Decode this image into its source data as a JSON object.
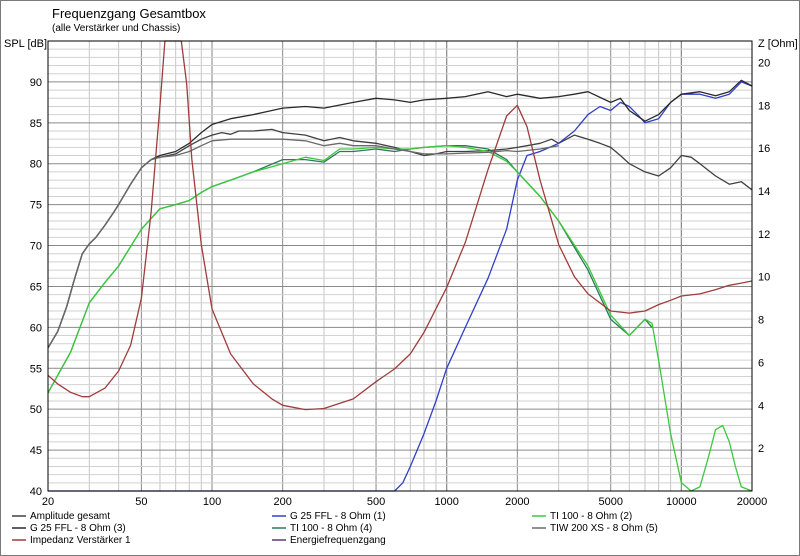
{
  "header": {
    "title": "Frequenzgang Gesamtbox",
    "subtitle": "(alle Verstärker und Chassis)",
    "y_left_label": "SPL [dB]",
    "y_right_label": "Z [Ohm]"
  },
  "chart_data": {
    "type": "line",
    "x_scale": "log",
    "xlim": [
      20,
      20000
    ],
    "ylim": [
      40,
      95
    ],
    "y2lim": [
      0,
      21
    ],
    "x_ticks": [
      20,
      50,
      100,
      200,
      500,
      1000,
      2000,
      5000,
      10000,
      20000
    ],
    "y_ticks": [
      40,
      45,
      50,
      55,
      60,
      65,
      70,
      75,
      80,
      85,
      90
    ],
    "y2_ticks": [
      2,
      4,
      6,
      8,
      10,
      12,
      14,
      16,
      18,
      20
    ],
    "grid": true,
    "legend_position": "bottom",
    "series": [
      {
        "name": "Amplitude gesamt",
        "axis": "left",
        "color": "#404040",
        "points": [
          [
            20,
            57.5
          ],
          [
            22,
            59.5
          ],
          [
            24,
            62.5
          ],
          [
            26,
            66
          ],
          [
            28,
            69
          ],
          [
            30,
            70.2
          ],
          [
            32,
            71
          ],
          [
            35,
            72.5
          ],
          [
            38,
            74
          ],
          [
            40,
            75
          ],
          [
            45,
            77.5
          ],
          [
            50,
            79.5
          ],
          [
            55,
            80.5
          ],
          [
            60,
            80.8
          ],
          [
            70,
            81.2
          ],
          [
            80,
            82.2
          ],
          [
            90,
            83
          ],
          [
            100,
            83.5
          ],
          [
            110,
            83.8
          ],
          [
            120,
            83.6
          ],
          [
            130,
            84
          ],
          [
            150,
            84
          ],
          [
            180,
            84.2
          ],
          [
            200,
            83.8
          ],
          [
            250,
            83.5
          ],
          [
            300,
            82.8
          ],
          [
            350,
            83.2
          ],
          [
            400,
            82.8
          ],
          [
            500,
            82.5
          ],
          [
            600,
            82
          ],
          [
            700,
            81.5
          ],
          [
            800,
            81
          ],
          [
            900,
            81.2
          ],
          [
            1000,
            81.5
          ],
          [
            1200,
            81.5
          ],
          [
            1500,
            81.6
          ],
          [
            1800,
            81.8
          ],
          [
            2000,
            82
          ],
          [
            2200,
            82.2
          ],
          [
            2500,
            82.5
          ],
          [
            2800,
            83
          ],
          [
            3000,
            82.5
          ],
          [
            3500,
            83.5
          ],
          [
            4000,
            83
          ],
          [
            4500,
            82.5
          ],
          [
            5000,
            82
          ],
          [
            5500,
            81
          ],
          [
            6000,
            80
          ],
          [
            7000,
            79
          ],
          [
            8000,
            78.5
          ],
          [
            9000,
            79.5
          ],
          [
            10000,
            81
          ],
          [
            11000,
            80.8
          ],
          [
            12000,
            80
          ],
          [
            14000,
            78.5
          ],
          [
            16000,
            77.5
          ],
          [
            18000,
            77.8
          ],
          [
            20000,
            76.8
          ]
        ]
      },
      {
        "name": "G 25 FFL - 8 Ohm (1)",
        "axis": "left",
        "color": "#3040c8",
        "points": [
          [
            20,
            40
          ],
          [
            400,
            40
          ],
          [
            600,
            40
          ],
          [
            650,
            41
          ],
          [
            700,
            43
          ],
          [
            800,
            47
          ],
          [
            900,
            51
          ],
          [
            1000,
            55
          ],
          [
            1200,
            60
          ],
          [
            1500,
            66
          ],
          [
            1800,
            72
          ],
          [
            2000,
            78
          ],
          [
            2200,
            81
          ],
          [
            2500,
            81.5
          ],
          [
            3000,
            82.5
          ],
          [
            3500,
            84
          ],
          [
            4000,
            86
          ],
          [
            4500,
            87
          ],
          [
            5000,
            86.5
          ],
          [
            5500,
            87.5
          ],
          [
            6000,
            87
          ],
          [
            6500,
            86
          ],
          [
            7000,
            85
          ],
          [
            8000,
            85.5
          ],
          [
            9000,
            87.5
          ],
          [
            10000,
            88.5
          ],
          [
            12000,
            88.5
          ],
          [
            14000,
            88
          ],
          [
            16000,
            88.5
          ],
          [
            18000,
            90
          ],
          [
            20000,
            89.5
          ]
        ]
      },
      {
        "name": "G 25 FFL - 8 Ohm (3)",
        "axis": "left",
        "color": "#2a2a2a",
        "points": [
          [
            20,
            57.5
          ],
          [
            22,
            59.5
          ],
          [
            24,
            62.5
          ],
          [
            26,
            66
          ],
          [
            28,
            69
          ],
          [
            30,
            70.2
          ],
          [
            32,
            71
          ],
          [
            35,
            72.5
          ],
          [
            38,
            74
          ],
          [
            40,
            75
          ],
          [
            45,
            77.5
          ],
          [
            50,
            79.5
          ],
          [
            55,
            80.5
          ],
          [
            60,
            81
          ],
          [
            70,
            81.5
          ],
          [
            80,
            82.5
          ],
          [
            90,
            83.8
          ],
          [
            100,
            84.8
          ],
          [
            120,
            85.5
          ],
          [
            150,
            86
          ],
          [
            180,
            86.5
          ],
          [
            200,
            86.8
          ],
          [
            250,
            87
          ],
          [
            300,
            86.8
          ],
          [
            400,
            87.5
          ],
          [
            500,
            88
          ],
          [
            600,
            87.8
          ],
          [
            700,
            87.5
          ],
          [
            800,
            87.8
          ],
          [
            1000,
            88
          ],
          [
            1200,
            88.2
          ],
          [
            1500,
            88.8
          ],
          [
            1800,
            88.2
          ],
          [
            2000,
            88.5
          ],
          [
            2500,
            88
          ],
          [
            3000,
            88.2
          ],
          [
            3500,
            88.5
          ],
          [
            4000,
            88.8
          ],
          [
            5000,
            87.5
          ],
          [
            5500,
            88
          ],
          [
            6000,
            86.5
          ],
          [
            7000,
            85.2
          ],
          [
            8000,
            86
          ],
          [
            9000,
            87.5
          ],
          [
            10000,
            88.5
          ],
          [
            12000,
            88.8
          ],
          [
            14000,
            88.3
          ],
          [
            16000,
            88.8
          ],
          [
            18000,
            90.2
          ],
          [
            20000,
            89.5
          ]
        ]
      },
      {
        "name": "TI 100 - 8 Ohm (4)",
        "axis": "left",
        "color": "#2a7a5a",
        "points": [
          [
            20,
            52
          ],
          [
            25,
            57
          ],
          [
            30,
            63
          ],
          [
            35,
            65.5
          ],
          [
            40,
            67.5
          ],
          [
            50,
            72
          ],
          [
            60,
            74.5
          ],
          [
            70,
            75
          ],
          [
            80,
            75.5
          ],
          [
            90,
            76.5
          ],
          [
            100,
            77.2
          ],
          [
            120,
            78
          ],
          [
            150,
            79
          ],
          [
            200,
            80.5
          ],
          [
            250,
            80.5
          ],
          [
            300,
            80.2
          ],
          [
            350,
            81.5
          ],
          [
            400,
            81.5
          ],
          [
            500,
            81.8
          ],
          [
            600,
            81.5
          ],
          [
            700,
            81.8
          ],
          [
            800,
            82
          ],
          [
            1000,
            82.2
          ],
          [
            1200,
            82.2
          ],
          [
            1500,
            81.8
          ],
          [
            1800,
            80.5
          ],
          [
            2000,
            79
          ],
          [
            2500,
            76
          ],
          [
            3000,
            73
          ],
          [
            4000,
            67
          ],
          [
            5000,
            61
          ],
          [
            6000,
            59
          ],
          [
            7000,
            61
          ],
          [
            7500,
            60
          ]
        ]
      },
      {
        "name": "TI 100 - 8 Ohm (2)",
        "axis": "left",
        "color": "#3cc83c",
        "points": [
          [
            20,
            52
          ],
          [
            25,
            57
          ],
          [
            30,
            63
          ],
          [
            35,
            65.5
          ],
          [
            40,
            67.5
          ],
          [
            50,
            72
          ],
          [
            60,
            74.5
          ],
          [
            70,
            75
          ],
          [
            80,
            75.5
          ],
          [
            90,
            76.5
          ],
          [
            100,
            77.2
          ],
          [
            120,
            78
          ],
          [
            150,
            79
          ],
          [
            200,
            80
          ],
          [
            250,
            80.8
          ],
          [
            300,
            80.4
          ],
          [
            350,
            81.8
          ],
          [
            400,
            81.8
          ],
          [
            500,
            82
          ],
          [
            600,
            81.8
          ],
          [
            700,
            81.8
          ],
          [
            800,
            82
          ],
          [
            1000,
            82.2
          ],
          [
            1200,
            82
          ],
          [
            1500,
            81.5
          ],
          [
            1800,
            80.3
          ],
          [
            2000,
            79
          ],
          [
            2500,
            76
          ],
          [
            3000,
            73
          ],
          [
            4000,
            67.5
          ],
          [
            5000,
            61.5
          ],
          [
            6000,
            59
          ],
          [
            7000,
            61
          ],
          [
            7500,
            60.5
          ],
          [
            8000,
            56
          ],
          [
            9000,
            47
          ],
          [
            10000,
            41
          ],
          [
            11000,
            40
          ],
          [
            12000,
            40.5
          ],
          [
            13000,
            44
          ],
          [
            14000,
            47.5
          ],
          [
            15000,
            48
          ],
          [
            16000,
            46
          ],
          [
            17000,
            43
          ],
          [
            18000,
            40.5
          ],
          [
            20000,
            40
          ]
        ]
      },
      {
        "name": "TIW 200 XS - 8 Ohm (5)",
        "axis": "left",
        "color": "#6a6a6a",
        "points": [
          [
            20,
            57.5
          ],
          [
            22,
            59.5
          ],
          [
            24,
            62.5
          ],
          [
            26,
            66
          ],
          [
            28,
            69
          ],
          [
            30,
            70.2
          ],
          [
            32,
            71
          ],
          [
            35,
            72.5
          ],
          [
            38,
            74
          ],
          [
            40,
            75
          ],
          [
            45,
            77.5
          ],
          [
            50,
            79.5
          ],
          [
            55,
            80.5
          ],
          [
            60,
            80.8
          ],
          [
            70,
            81
          ],
          [
            80,
            81.5
          ],
          [
            90,
            82.2
          ],
          [
            100,
            82.8
          ],
          [
            120,
            83
          ],
          [
            150,
            83
          ],
          [
            200,
            83
          ],
          [
            250,
            82.8
          ],
          [
            300,
            82.2
          ],
          [
            350,
            82.5
          ],
          [
            400,
            82.2
          ],
          [
            500,
            82.2
          ],
          [
            600,
            81.8
          ],
          [
            700,
            81.5
          ],
          [
            800,
            81.2
          ],
          [
            1000,
            81.2
          ],
          [
            1200,
            81.3
          ],
          [
            1500,
            81.4
          ],
          [
            1800,
            81.6
          ],
          [
            2000,
            81.5
          ],
          [
            2500,
            81.8
          ],
          [
            3000,
            82.2
          ]
        ]
      },
      {
        "name": "Impedanz Verstärker 1",
        "axis": "right",
        "color": "#a03c3c",
        "points": [
          [
            20,
            5.4
          ],
          [
            22,
            5
          ],
          [
            25,
            4.6
          ],
          [
            28,
            4.4
          ],
          [
            30,
            4.4
          ],
          [
            35,
            4.8
          ],
          [
            40,
            5.6
          ],
          [
            45,
            6.8
          ],
          [
            50,
            9
          ],
          [
            55,
            13
          ],
          [
            60,
            18
          ],
          [
            63,
            21
          ],
          [
            66,
            21.8
          ],
          [
            70,
            22
          ],
          [
            74,
            21.5
          ],
          [
            78,
            19
          ],
          [
            82,
            15.5
          ],
          [
            90,
            11.5
          ],
          [
            100,
            8.5
          ],
          [
            120,
            6.4
          ],
          [
            150,
            5
          ],
          [
            180,
            4.3
          ],
          [
            200,
            4
          ],
          [
            250,
            3.8
          ],
          [
            300,
            3.85
          ],
          [
            400,
            4.3
          ],
          [
            500,
            5.1
          ],
          [
            600,
            5.7
          ],
          [
            700,
            6.4
          ],
          [
            800,
            7.4
          ],
          [
            1000,
            9.5
          ],
          [
            1200,
            11.6
          ],
          [
            1500,
            15
          ],
          [
            1800,
            17.5
          ],
          [
            2000,
            18
          ],
          [
            2200,
            17
          ],
          [
            2500,
            14.5
          ],
          [
            3000,
            11.5
          ],
          [
            3500,
            10
          ],
          [
            4000,
            9.2
          ],
          [
            5000,
            8.4
          ],
          [
            6000,
            8.3
          ],
          [
            7000,
            8.4
          ],
          [
            8000,
            8.7
          ],
          [
            9000,
            8.9
          ],
          [
            10000,
            9.1
          ],
          [
            12000,
            9.2
          ],
          [
            14000,
            9.4
          ],
          [
            16000,
            9.6
          ],
          [
            18000,
            9.7
          ],
          [
            20000,
            9.8
          ]
        ]
      },
      {
        "name": "Energiefrequenzgang",
        "axis": "left",
        "color": "#5a3a7a",
        "points": []
      }
    ]
  }
}
